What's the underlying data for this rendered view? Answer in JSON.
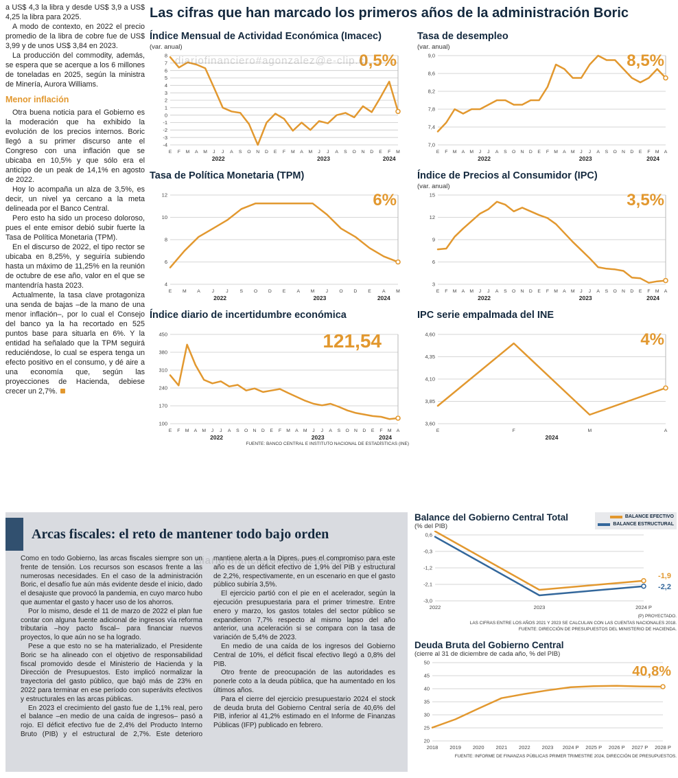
{
  "watermark": "diariofinanciero#agonzalez@e-clip.cl",
  "header": {
    "title": "Las cifras que han marcado los primeros años de la administración Boric"
  },
  "article": {
    "paragraphs_top": [
      "a US$ 4,3 la libra y desde US$ 3,9 a US$ 4,25 la libra para 2025.",
      "A modo de contexto, en 2022 el precio promedio de la libra de cobre fue de US$ 3,99 y de unos US$ 3,84 en 2023.",
      "La producción del commodity, además, se espera que se acerque a los 6 millones de toneladas en 2025, según la ministra de Minería, Aurora Williams."
    ],
    "section_heading": "Menor inflación",
    "paragraphs_bottom": [
      "Otra buena noticia para el Gobierno es la moderación que ha exhibido la evolución de los precios internos. Boric llegó a su primer discurso ante el Congreso con una inflación que se ubicaba en 10,5% y que sólo era el anticipo de un peak de 14,1% en agosto de 2022.",
      "Hoy lo acompaña un alza de 3,5%, es decir, un nivel ya cercano a la meta delineada por el Banco Central.",
      "Pero esto ha sido un proceso doloroso, pues el ente emisor debió subir fuerte la Tasa de Política Monetaria (TPM).",
      "En el discurso de 2022, el tipo rector se ubicaba en 8,25%, y seguiría subiendo hasta un máximo de 11,25% en la reunión de octubre de ese año, valor en el que se mantendría hasta 2023.",
      "Actualmente, la tasa clave protagoniza una senda de bajas –de la mano de una menor inflación–, por lo cual el Consejo del banco ya la ha recortado en 525 puntos base para situarla en 6%. Y la entidad ha señalado que la TPM seguirá reduciéndose, lo cual se espera tenga un efecto positivo en el consumo, y dé aire a una economía que, según las proyecciones de Hacienda, debiese crecer un 2,7%."
    ]
  },
  "fiscal": {
    "title": "Arcas fiscales: el reto de mantener todo bajo orden",
    "paragraphs": [
      "Como en todo Gobierno, las arcas fiscales siempre son un frente de tensión. Los recursos son escasos frente a las numerosas necesidades. En el caso de la administración Boric, el desafío fue aún más evidente desde el inicio, dado el desajuste que provocó la pandemia, en cuyo marco hubo que aumentar el gasto y hacer uso de los ahorros.",
      "Por lo mismo, desde el 11 de marzo de 2022 el plan fue contar con alguna fuente adicional de ingresos vía reforma tributaria –hoy pacto fiscal– para financiar nuevos proyectos, lo que aún no se ha logrado.",
      "Pese a que esto no se ha materializado, el Presidente Boric se ha alineado con el objetivo de responsabilidad fiscal promovido desde el Ministerio de Hacienda y la Dirección de Presupuestos. Esto implicó normalizar la trayectoria del gasto público, que bajó más de 23% en 2022 para terminar en ese período con superávits efectivos y estructurales en las arcas públicas.",
      "En 2023 el crecimiento del gasto fue de 1,1% real, pero el balance –en medio de una caída de ingresos– pasó a rojo. El déficit efectivo fue de 2,4% del Producto Interno Bruto (PIB) y el estructural de 2,7%. Este deterioro mantiene alerta a la Dipres, pues el compromiso para este año es de un déficit efectivo de 1,9% del PIB y estructural de 2,2%, respectivamente, en un escenario en que el gasto público subiría 3,5%.",
      "El ejercicio partió con el pie en el acelerador, según la ejecución presupuestaria para el primer trimestre. Entre enero y marzo, los gastos totales del sector público se expandieron 7,7% respecto al mismo lapso del año anterior, una aceleración si se compara con la tasa de variación de 5,4% de 2023.",
      "En medio de una caída de los ingresos del Gobierno Central de 10%, el déficit fiscal efectivo llegó a 0,8% del PIB.",
      "Otro frente de preocupación de las autoridades es ponerle coto a la deuda pública, que ha aumentado en los últimos años.",
      "Para el cierre del ejercicio presupuestario 2024 el stock de deuda bruta del Gobierno Central sería de 40,6% del PIB, inferior al 41,2% estimado en el Informe de Finanzas Públicas (IFP) publicado en febrero."
    ]
  },
  "chart_data": [
    {
      "type": "line",
      "title": "Índice Mensual de Actividad Económica (Imacec)",
      "subtitle": "(var. anual)",
      "callout": "0,5%",
      "ylim": [
        -4,
        8
      ],
      "yticks": [
        8,
        7,
        6,
        5,
        4,
        3,
        2,
        1,
        0,
        -1,
        -2,
        -3,
        -4
      ],
      "ytick_labels": [
        "8",
        "7",
        "6",
        "5",
        "4",
        "3",
        "2",
        "1",
        "0",
        "-1",
        "-2",
        "-3",
        "-4"
      ],
      "labels": [
        "E",
        "F",
        "M",
        "A",
        "M",
        "J",
        "J",
        "A",
        "S",
        "O",
        "N",
        "D",
        "E",
        "F",
        "M",
        "A",
        "M",
        "J",
        "J",
        "A",
        "S",
        "O",
        "N",
        "D",
        "E",
        "F",
        "M"
      ],
      "year_groups": [
        {
          "label": "2022",
          "from": 0,
          "to": 11
        },
        {
          "label": "2023",
          "from": 12,
          "to": 23
        },
        {
          "label": "2024",
          "from": 24,
          "to": 26
        }
      ],
      "drop_line": true,
      "series": [
        {
          "name": "Imacec",
          "color": "#E2982F",
          "values": [
            7.8,
            6.4,
            7.1,
            6.8,
            6.3,
            3.7,
            1.0,
            0.5,
            0.3,
            -1.2,
            -4.0,
            -1.0,
            0.2,
            -0.5,
            -2.1,
            -1.0,
            -2.0,
            -0.8,
            -1.1,
            0.0,
            0.3,
            -0.3,
            1.2,
            0.4,
            2.4,
            4.5,
            0.5
          ]
        }
      ]
    },
    {
      "type": "line",
      "title": "Tasa de desempleo",
      "subtitle": "(var. anual)",
      "callout": "8,5%",
      "ylim": [
        7.0,
        9.0
      ],
      "yticks": [
        9.0,
        8.6,
        8.2,
        7.8,
        7.4,
        7.0
      ],
      "ytick_labels": [
        "9,0",
        "8,6",
        "8,2",
        "7,8",
        "7,4",
        "7,0"
      ],
      "labels": [
        "E",
        "F",
        "M",
        "A",
        "M",
        "J",
        "J",
        "A",
        "S",
        "O",
        "N",
        "D",
        "E",
        "F",
        "M",
        "A",
        "M",
        "J",
        "J",
        "A",
        "S",
        "O",
        "N",
        "D",
        "E",
        "F",
        "M",
        "A"
      ],
      "year_groups": [
        {
          "label": "2022",
          "from": 0,
          "to": 11
        },
        {
          "label": "2023",
          "from": 12,
          "to": 23
        },
        {
          "label": "2024",
          "from": 24,
          "to": 27
        }
      ],
      "drop_line": true,
      "series": [
        {
          "name": "Tasa de desempleo",
          "color": "#E2982F",
          "values": [
            7.3,
            7.5,
            7.8,
            7.7,
            7.8,
            7.8,
            7.9,
            8.0,
            8.0,
            7.9,
            7.9,
            8.0,
            8.0,
            8.3,
            8.8,
            8.7,
            8.5,
            8.5,
            8.8,
            9.0,
            8.9,
            8.9,
            8.7,
            8.5,
            8.4,
            8.5,
            8.7,
            8.5
          ]
        }
      ]
    },
    {
      "type": "line",
      "title": "Tasa de Política Monetaria (TPM)",
      "subtitle": "",
      "callout": "6%",
      "ylim": [
        4,
        12
      ],
      "yticks": [
        12,
        10,
        8,
        6,
        4
      ],
      "ytick_labels": [
        "12",
        "10",
        "8",
        "6",
        "4"
      ],
      "labels": [
        "E",
        "M",
        "A",
        "J",
        "J",
        "S",
        "O",
        "D",
        "E",
        "A",
        "M",
        "J",
        "O",
        "D",
        "E",
        "A",
        "M"
      ],
      "year_groups": [
        {
          "label": "2022",
          "from": 0,
          "to": 7
        },
        {
          "label": "2023",
          "from": 8,
          "to": 13
        },
        {
          "label": "2024",
          "from": 14,
          "to": 16
        }
      ],
      "drop_line": true,
      "series": [
        {
          "name": "TPM",
          "color": "#E2982F",
          "values": [
            5.5,
            7.0,
            8.25,
            9.0,
            9.75,
            10.75,
            11.25,
            11.25,
            11.25,
            11.25,
            11.25,
            10.25,
            9.0,
            8.25,
            7.25,
            6.5,
            6.0
          ]
        }
      ]
    },
    {
      "type": "line",
      "title": "Índice de Precios al Consumidor (IPC)",
      "subtitle": "(var. anual)",
      "callout": "3,5%",
      "ylim": [
        3,
        15
      ],
      "yticks": [
        15,
        12,
        9,
        6,
        3
      ],
      "ytick_labels": [
        "15",
        "12",
        "9",
        "6",
        "3"
      ],
      "labels": [
        "E",
        "F",
        "M",
        "A",
        "M",
        "J",
        "J",
        "A",
        "S",
        "O",
        "N",
        "D",
        "E",
        "F",
        "M",
        "A",
        "M",
        "J",
        "J",
        "A",
        "S",
        "O",
        "N",
        "D",
        "E",
        "F",
        "M",
        "A"
      ],
      "year_groups": [
        {
          "label": "2022",
          "from": 0,
          "to": 11
        },
        {
          "label": "2023",
          "from": 12,
          "to": 23
        },
        {
          "label": "2024",
          "from": 24,
          "to": 27
        }
      ],
      "drop_line": true,
      "series": [
        {
          "name": "IPC",
          "color": "#E2982F",
          "values": [
            7.7,
            7.8,
            9.4,
            10.5,
            11.5,
            12.5,
            13.1,
            14.1,
            13.7,
            12.8,
            13.3,
            12.8,
            12.3,
            11.9,
            11.1,
            9.9,
            8.7,
            7.6,
            6.5,
            5.3,
            5.1,
            5.0,
            4.8,
            3.9,
            3.8,
            3.2,
            3.4,
            3.5
          ]
        }
      ]
    },
    {
      "type": "line",
      "title": "Índice diario de incertidumbre económica",
      "subtitle": "",
      "callout": "121,54",
      "source": "FUENTE: BANCO CENTRAL E INSTITUTO NACIONAL DE ESTADÍSTICAS (INE)",
      "ylim": [
        100,
        450
      ],
      "yticks": [
        450,
        380,
        310,
        240,
        170,
        100
      ],
      "ytick_labels": [
        "450",
        "380",
        "310",
        "240",
        "170",
        "100"
      ],
      "labels": [
        "E",
        "F",
        "M",
        "A",
        "M",
        "J",
        "J",
        "A",
        "S",
        "O",
        "N",
        "D",
        "E",
        "F",
        "M",
        "A",
        "M",
        "J",
        "J",
        "A",
        "S",
        "O",
        "N",
        "D",
        "E",
        "F",
        "M",
        "A"
      ],
      "year_groups": [
        {
          "label": "2022",
          "from": 0,
          "to": 11
        },
        {
          "label": "2023",
          "from": 12,
          "to": 23
        },
        {
          "label": "2024",
          "from": 24,
          "to": 27
        }
      ],
      "drop_line": true,
      "series": [
        {
          "name": "Incertidumbre económica",
          "color": "#E2982F",
          "values": [
            290,
            250,
            410,
            330,
            272,
            258,
            266,
            246,
            252,
            230,
            238,
            224,
            230,
            236,
            220,
            205,
            190,
            178,
            172,
            178,
            166,
            152,
            142,
            136,
            130,
            127,
            118,
            121.54
          ]
        }
      ]
    },
    {
      "type": "line",
      "title": "IPC serie empalmada del INE",
      "subtitle": "",
      "callout": "4%",
      "ylim": [
        3.6,
        4.6
      ],
      "yticks": [
        4.6,
        4.35,
        4.1,
        3.85,
        3.6
      ],
      "ytick_labels": [
        "4,60",
        "4,35",
        "4,10",
        "3,85",
        "3,60"
      ],
      "labels": [
        "E",
        "F",
        "M",
        "A"
      ],
      "year_groups": [
        {
          "label": "2024",
          "from": 0,
          "to": 3
        }
      ],
      "drop_line": true,
      "series": [
        {
          "name": "IPC empalmado",
          "color": "#E2982F",
          "values": [
            3.8,
            4.5,
            3.7,
            4.0
          ]
        }
      ]
    },
    {
      "type": "line",
      "title": "Balance del Gobierno Central Total",
      "subtitle": "(% del PIB)",
      "ylim": [
        -3.0,
        0.6
      ],
      "yticks": [
        0.6,
        -0.3,
        -1.2,
        -2.1,
        -3.0
      ],
      "ytick_labels": [
        "0,6",
        "-0,3",
        "-1,2",
        "-2,1",
        "-3,0"
      ],
      "labels": [
        "2022",
        "2023",
        "2024 P"
      ],
      "end_labels": [
        "-1,9",
        "-2,2"
      ],
      "notes": [
        "(P) PROYECTADO.",
        "LAS CIFRAS ENTRE LOS AÑOS 2021 Y 2023 SE CALCULAN CON LAS CUENTAS NACIONALES 2018.",
        "FUENTE: DIRECCIÓN DE PRESUPUESTOS DEL MINISTERIO DE HACIENDA."
      ],
      "series": [
        {
          "name": "BALANCE EFECTIVO",
          "color": "#E2982F",
          "values": [
            0.8,
            -2.4,
            -1.9
          ]
        },
        {
          "name": "BALANCE ESTRUCTURAL",
          "color": "#33679B",
          "values": [
            0.5,
            -2.7,
            -2.2
          ]
        }
      ]
    },
    {
      "type": "line",
      "title": "Deuda Bruta del Gobierno Central",
      "subtitle": "(cierre al 31 de diciembre de cada año, % del PIB)",
      "callout": "40,8%",
      "source": "FUENTE: INFORME DE FINANZAS PÚBLICAS PRIMER TRIMESTRE 2024, DIRECCIÓN DE PRESUPUESTOS.",
      "ylim": [
        20,
        50
      ],
      "yticks": [
        50,
        45,
        40,
        35,
        30,
        25,
        20
      ],
      "ytick_labels": [
        "50",
        "45",
        "40",
        "35",
        "30",
        "25",
        "20"
      ],
      "labels": [
        "2018",
        "2019",
        "2020",
        "2021",
        "2022",
        "2023",
        "2024 P",
        "2025 P",
        "2026 P",
        "2027 P",
        "2028 P"
      ],
      "series": [
        {
          "name": "Deuda bruta",
          "color": "#E2982F",
          "values": [
            25.1,
            28.3,
            32.4,
            36.4,
            38.0,
            39.4,
            40.6,
            41.0,
            41.1,
            40.9,
            40.8
          ]
        }
      ]
    }
  ]
}
